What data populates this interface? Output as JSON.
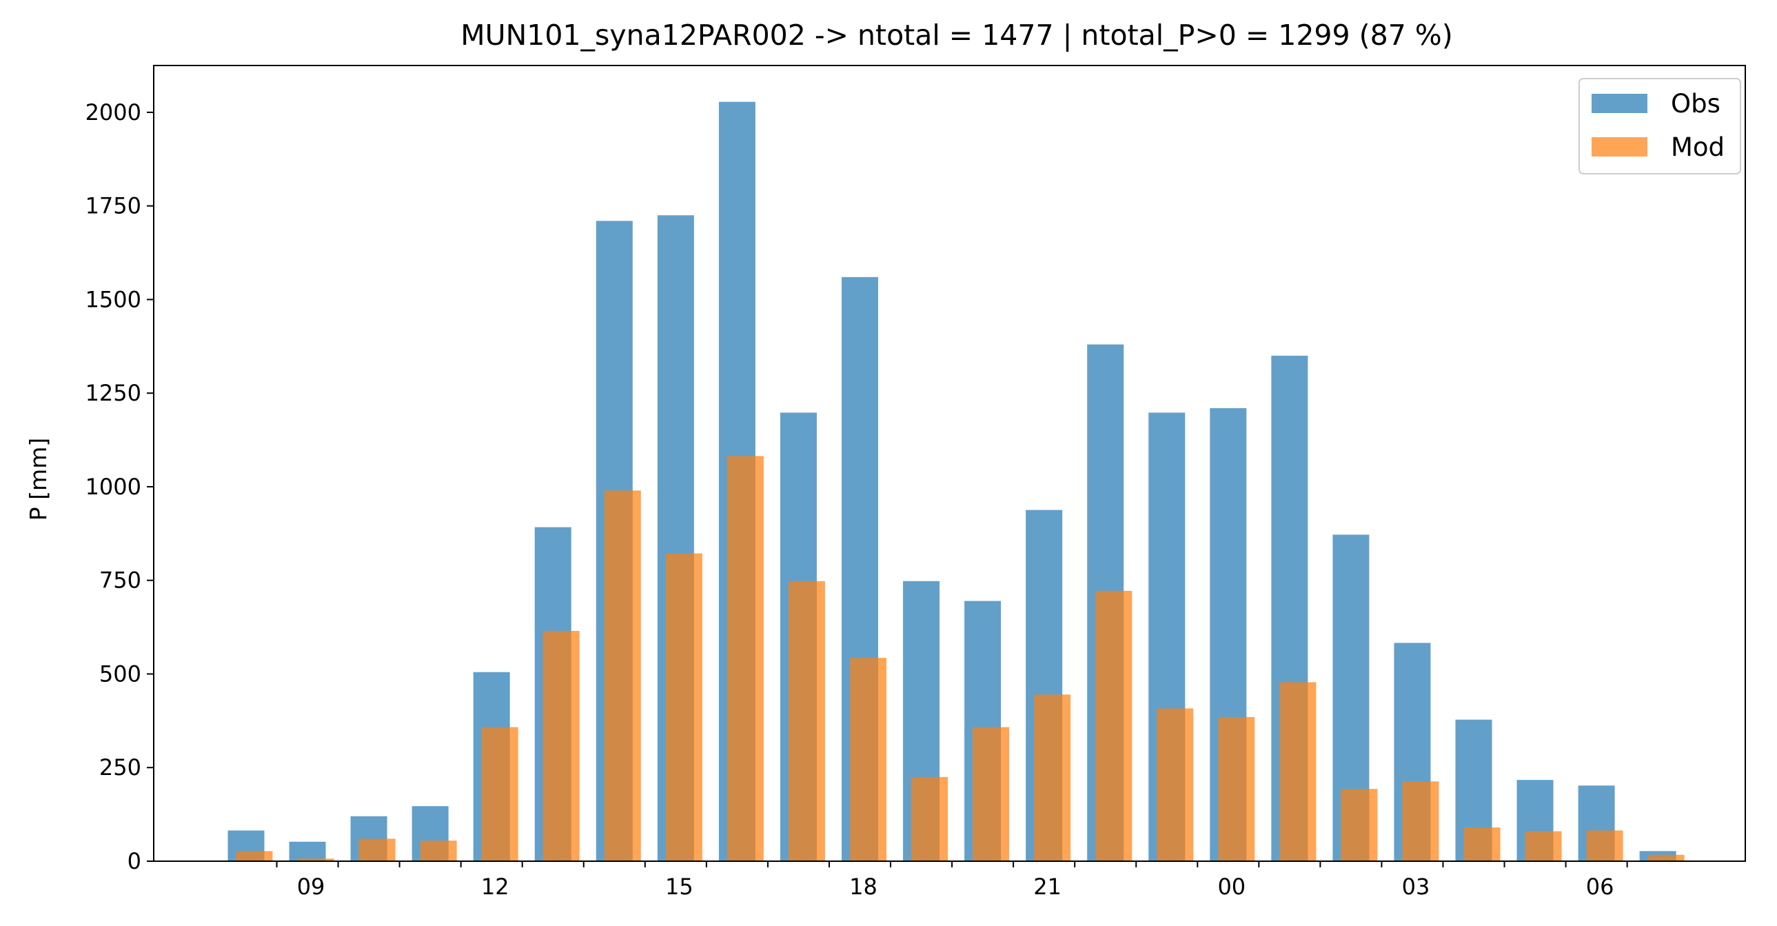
{
  "chart_data": {
    "type": "bar",
    "title": "MUN101_syna12PAR002 -> ntotal = 1477 | ntotal_P>0 = 1299 (87 %)",
    "xlabel": "",
    "ylabel": "P [mm]",
    "ylim": [
      0,
      2125
    ],
    "yticks": [
      0,
      250,
      500,
      750,
      1000,
      1250,
      1500,
      1750,
      2000
    ],
    "hours": [
      8,
      9,
      10,
      11,
      12,
      13,
      14,
      15,
      16,
      17,
      18,
      19,
      20,
      21,
      22,
      23,
      0,
      1,
      2,
      3,
      4,
      5,
      6,
      7
    ],
    "xtick_labels": [
      "09",
      "12",
      "15",
      "18",
      "21",
      "00",
      "03",
      "06"
    ],
    "grid": false,
    "legend_position": "top-right",
    "series": [
      {
        "name": "Obs",
        "color": "#1f77b4",
        "values": [
          82,
          52,
          120,
          147,
          505,
          892,
          1710,
          1725,
          2028,
          1198,
          1560,
          748,
          695,
          938,
          1380,
          1198,
          1210,
          1350,
          872,
          583,
          378,
          217,
          202,
          27
        ]
      },
      {
        "name": "Mod",
        "color": "#ff7f0e",
        "values": [
          27,
          7,
          60,
          55,
          358,
          615,
          990,
          822,
          1082,
          748,
          543,
          225,
          358,
          445,
          722,
          408,
          385,
          478,
          193,
          213,
          90,
          80,
          82,
          17
        ]
      }
    ]
  }
}
